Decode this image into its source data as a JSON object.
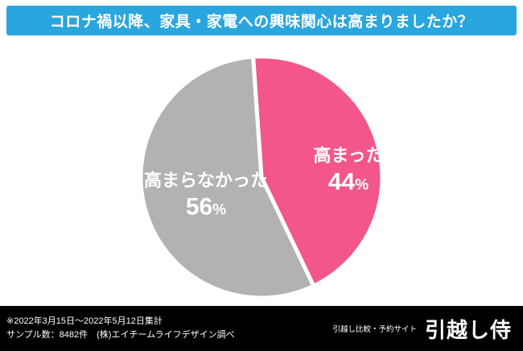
{
  "header": {
    "title": "コロナ禍以降、家具・家電への興味関心は高まりましたか？",
    "bg_color": "#2aa6de",
    "text_color": "#ffffff"
  },
  "chart_data": {
    "type": "pie",
    "title": "コロナ禍以降、家具・家電への興味関心は高まりましたか？",
    "unit": "%",
    "percent_sign": "%",
    "start_angle_deg": -4,
    "direction": "clockwise",
    "slices": [
      {
        "label": "高まった",
        "value": 44,
        "color": "#f2568b"
      },
      {
        "label": "高まらなかった",
        "value": 56,
        "color": "#b2b2b2"
      }
    ],
    "label_text_color": "#ffffff",
    "gap_color": "#ffffff",
    "legend": "none"
  },
  "footer": {
    "bg_color": "#000000",
    "note_line1": "※2022年3月15日〜2022年5月12日集計",
    "note_line2": "サンプル数：8482件　(株)エイチームライフデザイン調べ",
    "site_tagline": "引越し比較・予約サイト",
    "site_logo": "引越し侍"
  }
}
